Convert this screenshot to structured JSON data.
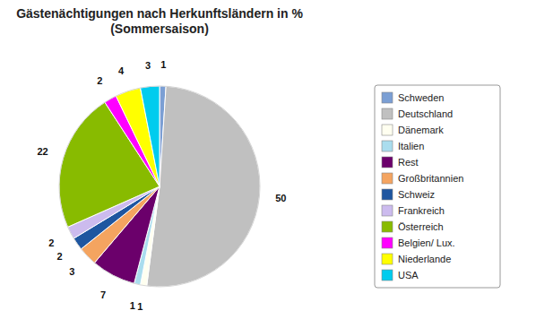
{
  "chart_data": {
    "type": "pie",
    "title": "Gästenächtigungen nach Herkunftsländern in %\n(Sommersaison)",
    "categories": [
      "Schweden",
      "Deutschland",
      "Dänemark",
      "Italien",
      "Rest",
      "Großbritannien",
      "Schweiz",
      "Frankreich",
      "Österreich",
      "Belgien/ Lux.",
      "Niederlande",
      "USA"
    ],
    "values": [
      1,
      50,
      1,
      1,
      7,
      3,
      2,
      2,
      22,
      2,
      4,
      3
    ],
    "colors": [
      "#7B9FD4",
      "#C0C0C0",
      "#FFFFF0",
      "#AADDEE",
      "#6B006B",
      "#F4A460",
      "#1E56A0",
      "#CCBBEE",
      "#88BB00",
      "#FF00FF",
      "#FFFF00",
      "#00CCEE"
    ],
    "data_labels": true,
    "legend": "right"
  }
}
